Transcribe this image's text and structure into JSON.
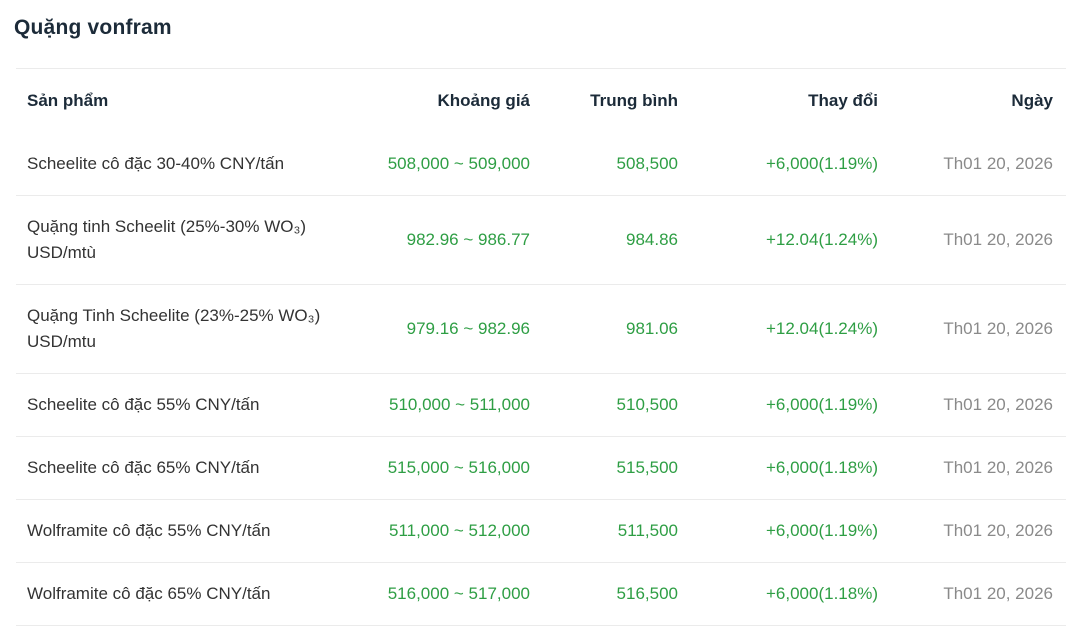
{
  "page": {
    "title": "Quặng vonfram"
  },
  "table": {
    "columns": [
      "Sản phẩm",
      "Khoảng giá",
      "Trung bình",
      "Thay đổi",
      "Ngày"
    ],
    "rows": [
      {
        "product": "Scheelite cô đặc 30-40% CNY/tấn",
        "range": "508,000 ~ 509,000",
        "avg": "508,500",
        "change": "+6,000(1.19%)",
        "date": "Th01 20, 2026"
      },
      {
        "product": "Quặng tinh Scheelit (25%-30% WO₃) USD/mtù",
        "range": "982.96 ~ 986.77",
        "avg": "984.86",
        "change": "+12.04(1.24%)",
        "date": "Th01 20, 2026"
      },
      {
        "product": "Quặng Tinh Scheelite (23%-25% WO₃) USD/mtu",
        "range": "979.16 ~ 982.96",
        "avg": "981.06",
        "change": "+12.04(1.24%)",
        "date": "Th01 20, 2026"
      },
      {
        "product": "Scheelite cô đặc 55% CNY/tấn",
        "range": "510,000 ~ 511,000",
        "avg": "510,500",
        "change": "+6,000(1.19%)",
        "date": "Th01 20, 2026"
      },
      {
        "product": "Scheelite cô đặc 65% CNY/tấn",
        "range": "515,000 ~ 516,000",
        "avg": "515,500",
        "change": "+6,000(1.18%)",
        "date": "Th01 20, 2026"
      },
      {
        "product": "Wolframite cô đặc 55% CNY/tấn",
        "range": "511,000 ~ 512,000",
        "avg": "511,500",
        "change": "+6,000(1.19%)",
        "date": "Th01 20, 2026"
      },
      {
        "product": "Wolframite cô đặc 65% CNY/tấn",
        "range": "516,000 ~ 517,000",
        "avg": "516,500",
        "change": "+6,000(1.18%)",
        "date": "Th01 20, 2026"
      }
    ]
  },
  "colors": {
    "accent-green": "#2e9e44",
    "text-dark": "#1c2b39",
    "text-body": "#333333",
    "text-muted": "#8a8a8a",
    "divider": "#ebebeb",
    "background": "#ffffff"
  }
}
